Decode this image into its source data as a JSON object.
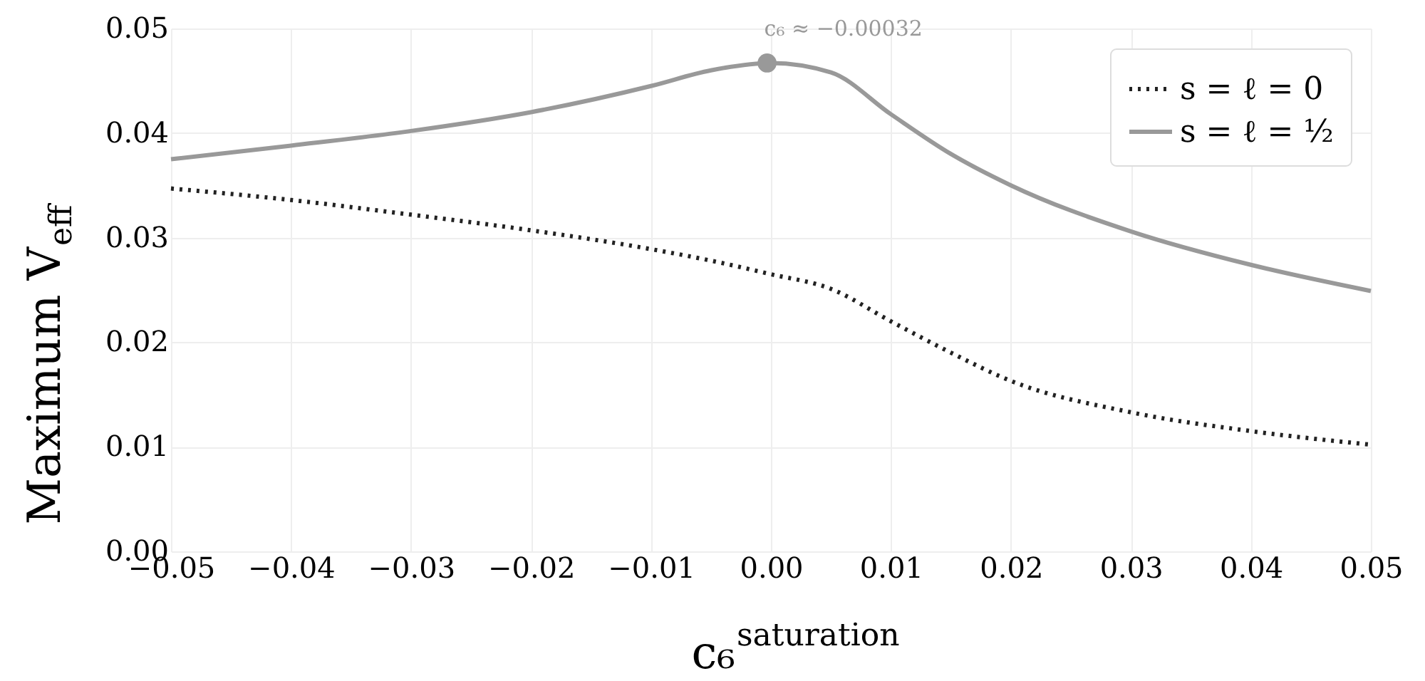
{
  "chart_data": {
    "type": "line",
    "xlabel": "c₆$^{saturation}$",
    "ylabel": "Maximum V$_{eff}$",
    "xlim": [
      -0.05,
      0.05
    ],
    "xticks": [
      {
        "value": -0.05,
        "label": "−0.05"
      },
      {
        "value": -0.04,
        "label": "−0.04"
      },
      {
        "value": -0.03,
        "label": "−0.03"
      },
      {
        "value": -0.02,
        "label": "−0.02"
      },
      {
        "value": -0.01,
        "label": "−0.01"
      },
      {
        "value": 0,
        "label": "0.00"
      },
      {
        "value": 0.01,
        "label": "0.01"
      },
      {
        "value": 0.02,
        "label": "0.02"
      },
      {
        "value": 0.03,
        "label": "0.03"
      },
      {
        "value": 0.04,
        "label": "0.04"
      },
      {
        "value": 0.05,
        "label": "0.05"
      }
    ],
    "ylim": [
      0,
      0.05
    ],
    "yticks": [
      {
        "value": 0,
        "label": "0.00"
      },
      {
        "value": 0.01,
        "label": "0.01"
      },
      {
        "value": 0.02,
        "label": "0.02"
      },
      {
        "value": 0.03,
        "label": "0.03"
      },
      {
        "value": 0.04,
        "label": "0.04"
      },
      {
        "value": 0.05,
        "label": "0.05"
      }
    ],
    "grid": true,
    "legend": "top right",
    "marker": "none",
    "x": [
      -0.05,
      -0.04,
      -0.03,
      -0.02,
      -0.01,
      -0.005,
      0.0,
      0.005,
      0.01,
      0.015,
      0.02,
      0.03,
      0.04,
      0.05
    ],
    "series": [
      {
        "name": "s = ℓ = 0",
        "color": "#222222",
        "line_style": "dotted",
        "values": [
          0.0347,
          0.0336,
          0.0322,
          0.0307,
          0.0289,
          0.0278,
          0.0265,
          0.0251,
          0.022,
          0.019,
          0.0163,
          0.0133,
          0.0115,
          0.0102
        ]
      },
      {
        "name": "s = ℓ = ½",
        "color": "#999999",
        "line_style": "solid",
        "values": [
          0.0375,
          0.0388,
          0.0402,
          0.042,
          0.0445,
          0.046,
          0.0467,
          0.0458,
          0.0418,
          0.038,
          0.035,
          0.0306,
          0.0274,
          0.0249
        ]
      },
      {
        "type": "scatter",
        "color": "#999999",
        "marker": "circle",
        "x": [
          -0.00032
        ],
        "values": [
          0.0467
        ]
      }
    ],
    "annotations": [
      {
        "text": "c₆ ≈ −0.00032",
        "x": -0.00032,
        "y": 0.0467
      }
    ]
  }
}
